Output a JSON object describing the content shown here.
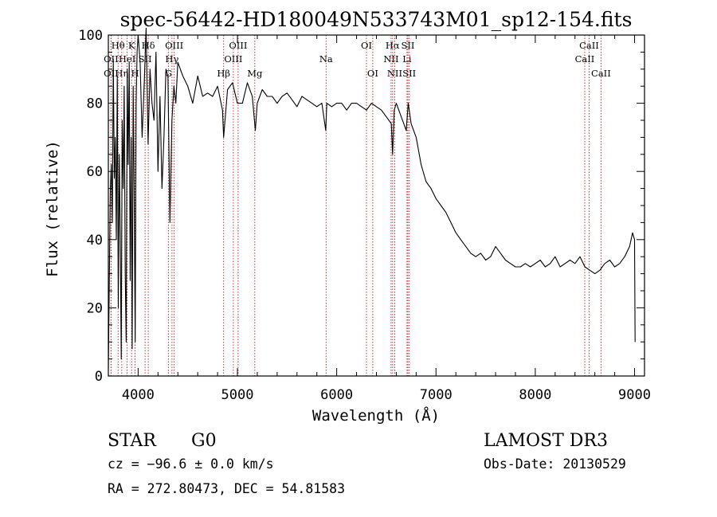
{
  "chart_data": {
    "type": "line",
    "title": "spec-56442-HD180049N533743M01_sp12-154.fits",
    "xlabel": "Wavelength (Å)",
    "ylabel": "Flux (relative)",
    "xlim": [
      3700,
      9100
    ],
    "ylim": [
      0,
      100
    ],
    "xticks": [
      4000,
      5000,
      6000,
      7000,
      8000,
      9000
    ],
    "yticks": [
      0,
      20,
      40,
      60,
      80,
      100
    ],
    "grid": false,
    "spectrum": {
      "x": [
        3700,
        3710,
        3720,
        3730,
        3740,
        3750,
        3760,
        3770,
        3780,
        3790,
        3800,
        3810,
        3820,
        3830,
        3840,
        3850,
        3860,
        3870,
        3880,
        3890,
        3900,
        3910,
        3920,
        3930,
        3940,
        3950,
        3960,
        3970,
        3980,
        3990,
        4000,
        4020,
        4040,
        4060,
        4080,
        4100,
        4120,
        4140,
        4160,
        4180,
        4200,
        4220,
        4240,
        4260,
        4280,
        4300,
        4320,
        4340,
        4360,
        4380,
        4400,
        4450,
        4500,
        4550,
        4600,
        4650,
        4700,
        4750,
        4800,
        4850,
        4861,
        4900,
        4950,
        5000,
        5050,
        5100,
        5150,
        5180,
        5200,
        5250,
        5300,
        5350,
        5400,
        5450,
        5500,
        5550,
        5600,
        5650,
        5700,
        5750,
        5800,
        5850,
        5890,
        5900,
        5950,
        6000,
        6050,
        6100,
        6150,
        6200,
        6250,
        6300,
        6350,
        6400,
        6450,
        6500,
        6550,
        6563,
        6580,
        6600,
        6650,
        6700,
        6720,
        6750,
        6800,
        6850,
        6900,
        6950,
        7000,
        7050,
        7100,
        7150,
        7200,
        7250,
        7300,
        7350,
        7400,
        7450,
        7500,
        7550,
        7600,
        7650,
        7700,
        7750,
        7800,
        7850,
        7900,
        7950,
        8000,
        8050,
        8100,
        8150,
        8200,
        8250,
        8300,
        8350,
        8400,
        8450,
        8500,
        8550,
        8600,
        8650,
        8700,
        8750,
        8800,
        8850,
        8900,
        8950,
        8980,
        9000,
        9005
      ],
      "y": [
        2,
        28,
        55,
        62,
        45,
        93,
        58,
        70,
        40,
        88,
        20,
        65,
        40,
        5,
        75,
        55,
        85,
        30,
        10,
        90,
        62,
        92,
        28,
        70,
        8,
        85,
        55,
        10,
        80,
        95,
        100,
        92,
        70,
        85,
        102,
        68,
        90,
        80,
        75,
        95,
        60,
        82,
        55,
        70,
        90,
        88,
        45,
        75,
        85,
        80,
        92,
        88,
        85,
        80,
        88,
        82,
        83,
        82,
        85,
        78,
        70,
        84,
        86,
        80,
        80,
        86,
        82,
        72,
        80,
        84,
        82,
        82,
        80,
        82,
        83,
        81,
        79,
        82,
        81,
        80,
        79,
        80,
        72,
        80,
        79,
        80,
        80,
        78,
        80,
        80,
        79,
        78,
        80,
        79,
        78,
        76,
        74,
        65,
        78,
        80,
        76,
        72,
        80,
        74,
        70,
        62,
        57,
        55,
        52,
        50,
        48,
        45,
        42,
        40,
        38,
        36,
        35,
        36,
        34,
        35,
        38,
        36,
        34,
        33,
        32,
        32,
        33,
        32,
        33,
        34,
        32,
        33,
        35,
        32,
        33,
        34,
        33,
        35,
        32,
        31,
        30,
        31,
        33,
        34,
        32,
        33,
        35,
        38,
        42,
        40,
        10
      ]
    },
    "lines": [
      {
        "label": "Hθ",
        "x": 3798,
        "row": 0
      },
      {
        "label": "OII",
        "x": 3727,
        "row": 1
      },
      {
        "label": "OII",
        "x": 3727,
        "row": 2
      },
      {
        "label": "K",
        "x": 3934,
        "row": 0
      },
      {
        "label": "HeI",
        "x": 3889,
        "row": 1
      },
      {
        "label": "Hη",
        "x": 3835,
        "row": 2
      },
      {
        "label": "Hδ",
        "x": 4102,
        "row": 0
      },
      {
        "label": "SII",
        "x": 4070,
        "row": 1
      },
      {
        "label": "H",
        "x": 3969,
        "row": 2
      },
      {
        "label": "OIII",
        "x": 4363,
        "row": 0
      },
      {
        "label": "Hγ",
        "x": 4341,
        "row": 1
      },
      {
        "label": "G",
        "x": 4305,
        "row": 2
      },
      {
        "label": "Hβ",
        "x": 4861,
        "row": 2
      },
      {
        "label": "OIII",
        "x": 5007,
        "row": 0
      },
      {
        "label": "OIII",
        "x": 4959,
        "row": 1
      },
      {
        "label": "Mg",
        "x": 5175,
        "row": 2
      },
      {
        "label": "Na",
        "x": 5893,
        "row": 1
      },
      {
        "label": "OI",
        "x": 6300,
        "row": 0
      },
      {
        "label": "OI",
        "x": 6363,
        "row": 2
      },
      {
        "label": "Hα",
        "x": 6563,
        "row": 0
      },
      {
        "label": "NII",
        "x": 6548,
        "row": 1
      },
      {
        "label": "NII",
        "x": 6584,
        "row": 2
      },
      {
        "label": "SII",
        "x": 6717,
        "row": 0
      },
      {
        "label": "Li",
        "x": 6708,
        "row": 1
      },
      {
        "label": "SII",
        "x": 6731,
        "row": 2
      },
      {
        "label": "CaII",
        "x": 8542,
        "row": 0
      },
      {
        "label": "CaII",
        "x": 8498,
        "row": 1
      },
      {
        "label": "CaII",
        "x": 8662,
        "row": 2
      }
    ]
  },
  "info": {
    "object_class": "STAR",
    "subclass": "G0",
    "survey": "LAMOST DR3",
    "cz": "cz = −96.6 ± 0.0 km/s",
    "obs_date": "Obs-Date: 20130529",
    "coords": "RA = 272.80473, DEC =  54.81583"
  },
  "colors": {
    "spectrum": "#000000",
    "line_markers": "#b22222"
  }
}
